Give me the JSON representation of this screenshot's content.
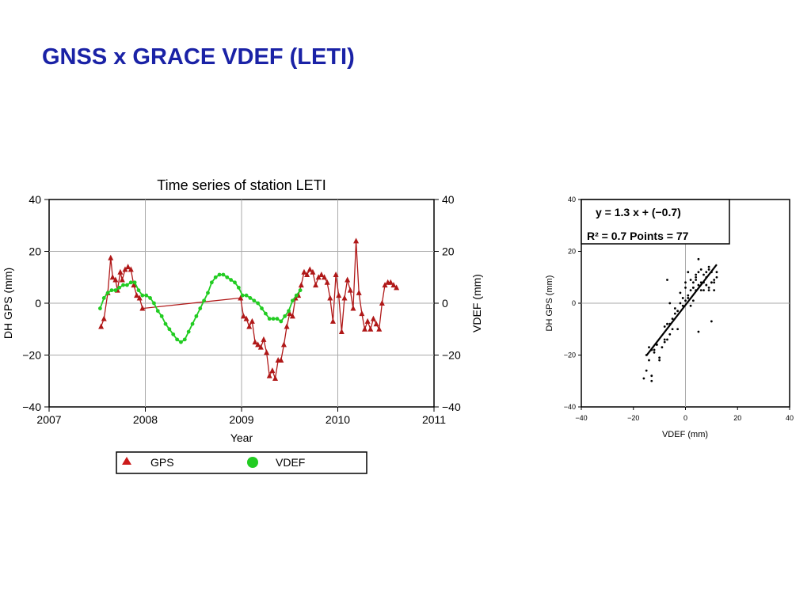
{
  "slide": {
    "title": "GNSS x GRACE VDEF (LETI)"
  },
  "colors": {
    "title": "#1a22a6",
    "gps": "#b01818",
    "vdef": "#22cc22",
    "grid": "#aaaaaa",
    "axis": "#000000"
  },
  "chart_data": [
    {
      "type": "line",
      "title": "Time series of station LETI",
      "xlabel": "Year",
      "ylabel_left": "DH GPS (mm)",
      "ylabel_right": "VDEF  (mm)",
      "xlim": [
        2007,
        2011
      ],
      "ylim": [
        -40,
        40
      ],
      "x_ticks": [
        "2007",
        "2008",
        "2009",
        "2010",
        "2011"
      ],
      "y_ticks": [
        "40",
        "20",
        "0",
        "−20",
        "−40"
      ],
      "grid": true,
      "legend": {
        "placement": "bottom",
        "entries": [
          "GPS",
          "VDEF"
        ]
      },
      "series": [
        {
          "name": "GPS",
          "marker": "triangle",
          "x": [
            2007.54,
            2007.57,
            2007.61,
            2007.64,
            2007.66,
            2007.69,
            2007.71,
            2007.74,
            2007.76,
            2007.79,
            2007.82,
            2007.85,
            2007.88,
            2007.91,
            2007.94,
            2007.97,
            2008.99,
            2009.02,
            2009.05,
            2009.08,
            2009.11,
            2009.14,
            2009.17,
            2009.2,
            2009.23,
            2009.26,
            2009.29,
            2009.32,
            2009.35,
            2009.38,
            2009.41,
            2009.44,
            2009.47,
            2009.5,
            2009.53,
            2009.56,
            2009.59,
            2009.62,
            2009.65,
            2009.68,
            2009.71,
            2009.74,
            2009.77,
            2009.8,
            2009.83,
            2009.86,
            2009.89,
            2009.92,
            2009.95,
            2009.98,
            2010.01,
            2010.04,
            2010.07,
            2010.1,
            2010.13,
            2010.16,
            2010.19,
            2010.22,
            2010.25,
            2010.28,
            2010.31,
            2010.34,
            2010.37,
            2010.4,
            2010.43,
            2010.46,
            2010.49,
            2010.52,
            2010.55,
            2010.58,
            2010.61
          ],
          "y": [
            -9,
            -6,
            4,
            17.5,
            10,
            9,
            5,
            12,
            9,
            13,
            14,
            13,
            7,
            3,
            2,
            -2,
            2,
            -5,
            -6,
            -9,
            -7,
            -15,
            -16,
            -17,
            -14,
            -19,
            -28,
            -26,
            -29,
            -22,
            -22,
            -16,
            -9,
            -4,
            -5,
            2,
            3,
            7,
            12,
            11,
            13,
            12,
            7,
            10,
            11,
            10,
            8,
            2,
            -7,
            11,
            3,
            -11,
            2,
            9,
            5,
            -2,
            24,
            4,
            -4,
            -10,
            -7,
            -10,
            -6,
            -8,
            -10,
            0,
            7,
            8,
            8,
            7,
            6
          ],
          "color": "#b01818"
        },
        {
          "name": "VDEF",
          "marker": "circle",
          "x": [
            2007.53,
            2007.57,
            2007.61,
            2007.65,
            2007.69,
            2007.73,
            2007.77,
            2007.81,
            2007.85,
            2007.89,
            2007.93,
            2007.97,
            2008.01,
            2008.05,
            2008.09,
            2008.13,
            2008.17,
            2008.21,
            2008.25,
            2008.29,
            2008.33,
            2008.37,
            2008.41,
            2008.45,
            2008.49,
            2008.53,
            2008.57,
            2008.61,
            2008.65,
            2008.69,
            2008.73,
            2008.77,
            2008.81,
            2008.85,
            2008.89,
            2008.93,
            2008.97,
            2009.01,
            2009.05,
            2009.09,
            2009.13,
            2009.17,
            2009.21,
            2009.25,
            2009.29,
            2009.33,
            2009.37,
            2009.41,
            2009.45,
            2009.49,
            2009.53,
            2009.57,
            2009.61
          ],
          "y": [
            -2,
            2,
            4,
            5,
            5,
            6,
            7,
            7,
            8,
            8,
            5,
            3,
            3,
            2,
            0,
            -3,
            -5,
            -8,
            -10,
            -12,
            -14,
            -15,
            -14,
            -11,
            -8,
            -5,
            -2,
            1,
            4,
            8,
            10,
            11,
            11,
            10,
            9,
            8,
            6,
            3,
            3,
            2,
            1,
            0,
            -2,
            -4,
            -6,
            -6,
            -6,
            -7,
            -5,
            -3,
            1,
            3,
            5
          ],
          "color": "#22cc22"
        }
      ]
    },
    {
      "type": "scatter",
      "title": "",
      "xlabel": "VDEF  (mm)",
      "ylabel": "DH GPS (mm)",
      "xlim": [
        -40,
        40
      ],
      "ylim": [
        -40,
        40
      ],
      "x_ticks": [
        "−40",
        "−20",
        "0",
        "20",
        "40"
      ],
      "y_ticks": [
        "40",
        "20",
        "0",
        "−20",
        "−40"
      ],
      "grid": false,
      "annotations": [
        "y = 1.3 x + (−0.7)",
        "R² = 0.7  Points = 77"
      ],
      "fit": {
        "slope": 1.3,
        "intercept": -0.7,
        "x_range": [
          -15,
          12
        ]
      },
      "points": {
        "x": [
          -15,
          -14,
          -13,
          -13,
          -12,
          -11,
          -10,
          -10,
          -9,
          -8,
          -8,
          -8,
          -7,
          -7,
          -6,
          -6,
          -5,
          -5,
          -4,
          -4,
          -3,
          -2,
          -2,
          -1,
          -1,
          0,
          0,
          1,
          1,
          1,
          2,
          2,
          2,
          3,
          3,
          3,
          4,
          4,
          4,
          5,
          5,
          5,
          6,
          6,
          6,
          7,
          7,
          7,
          8,
          8,
          8,
          9,
          9,
          9,
          10,
          10,
          10,
          11,
          11,
          11,
          12,
          12,
          -16,
          -15,
          -13,
          -11,
          -7,
          -6,
          -3,
          0,
          3,
          4,
          5,
          9,
          10,
          -14,
          -12
        ],
        "y": [
          -20,
          -17,
          -28,
          -30,
          -18,
          -16,
          -22,
          -21,
          -17,
          -14,
          -15,
          -9,
          -8,
          9,
          -12,
          0,
          -6,
          -10,
          -2,
          -4,
          -3,
          0,
          4,
          2,
          -1,
          8,
          6,
          12,
          3,
          2,
          -1,
          9,
          5,
          6,
          8,
          1,
          5,
          10,
          11,
          -11,
          17,
          7,
          8,
          13,
          5,
          11,
          8,
          5,
          10,
          12,
          7,
          13,
          6,
          14,
          8,
          -7,
          12,
          9,
          8,
          5,
          12,
          10,
          -29,
          -26,
          -18,
          -16,
          -14,
          -8,
          -10,
          1,
          6,
          9,
          12,
          5,
          8,
          -22,
          -19
        ]
      }
    }
  ]
}
